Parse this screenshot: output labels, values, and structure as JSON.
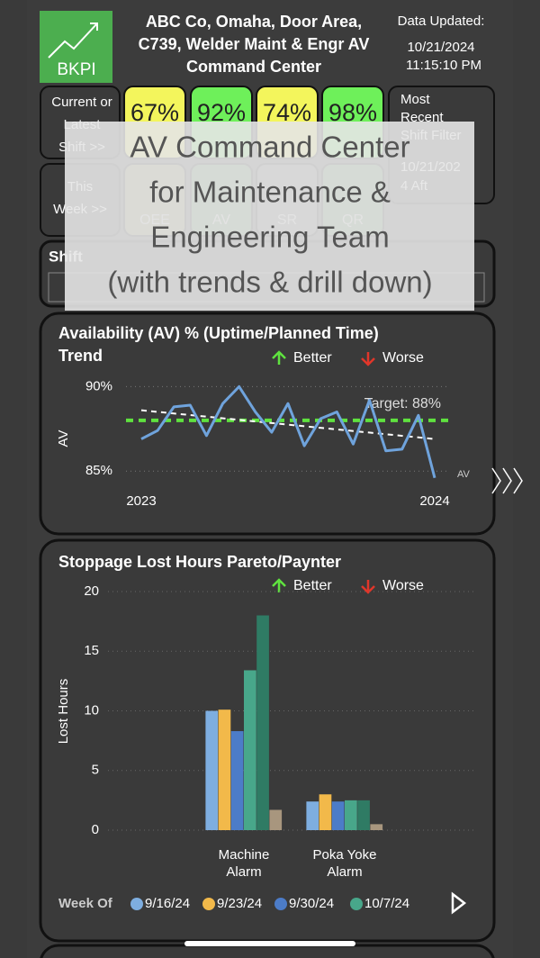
{
  "header": {
    "logo": "BKPI",
    "title_lines": [
      "ABC Co, Omaha, Door Area,",
      "C739, Welder Maint & Engr AV",
      "Command Center"
    ],
    "updated_label": "Data Updated:",
    "updated_date": "10/21/2024",
    "updated_time": "11:15:10 PM"
  },
  "kpi": {
    "current": {
      "label_lines": [
        "Current or",
        "Latest",
        "Shift >>"
      ],
      "values": [
        "67%",
        "92%",
        "74%",
        "98%"
      ],
      "colors": [
        "#f3f55c",
        "#6ef05a",
        "#f3f55c",
        "#6ef05a"
      ]
    },
    "week": {
      "label_lines": [
        "This",
        "Week >>"
      ],
      "metrics": [
        "OEE",
        "AV",
        "SR",
        "QR"
      ],
      "colors": [
        "#f3f55c",
        "#6ef05a",
        "#9a9a9a",
        "#6ef05a"
      ]
    }
  },
  "filter": {
    "label_lines": [
      "Most",
      "Recent",
      "Shift Filter"
    ],
    "value_lines": [
      "10/21/202",
      "4 Aft"
    ]
  },
  "shift": {
    "label": "Shift"
  },
  "overlay": {
    "lines": [
      "AV Command Center",
      "for Maintenance &",
      "Engineering Team",
      "(with trends & drill down)"
    ]
  },
  "chart_data": [
    {
      "type": "line",
      "title_lines": [
        "Availability (AV) % (Uptime/Planned Time)",
        "Trend"
      ],
      "legend_directions": [
        "Better",
        "Worse"
      ],
      "y_label": "AV",
      "categories": [
        "2023",
        null,
        null,
        null,
        null,
        null,
        null,
        null,
        null,
        null,
        null,
        null,
        null,
        null,
        null,
        null,
        null,
        null,
        "2024"
      ],
      "series": [
        {
          "name": "AV",
          "color": "#6fa3dc",
          "values": [
            86.9,
            87.4,
            88.8,
            88.9,
            87.1,
            89.0,
            90.0,
            88.5,
            87.3,
            89.0,
            86.5,
            88.1,
            88.5,
            86.6,
            89.2,
            86.2,
            86.3,
            88.3,
            84.6
          ]
        }
      ],
      "ylim": [
        84,
        90.5
      ],
      "yticks": [
        {
          "value": 85,
          "label": "85%"
        },
        {
          "value": 90,
          "label": "90%"
        }
      ],
      "target": {
        "value": 88,
        "label": "Target: 88%",
        "color": "#5fe23f"
      },
      "trend": [
        88.6,
        86.9
      ],
      "trend_color": "#ffffff",
      "grid": true
    },
    {
      "type": "bar",
      "title": "Stoppage Lost Hours Pareto/Paynter",
      "legend_directions": [
        "Better",
        "Worse"
      ],
      "y_label": "Lost Hours",
      "legend_title": "Week Of",
      "categories": [
        "Machine Alarm",
        "Poka Yoke Alarm"
      ],
      "series": [
        {
          "name": "9/16/24",
          "color": "#7eaee0",
          "values": [
            10.0,
            2.4
          ]
        },
        {
          "name": "9/23/24",
          "color": "#f2b94a",
          "values": [
            10.1,
            3.0
          ]
        },
        {
          "name": "9/30/24",
          "color": "#4c7cc8",
          "values": [
            8.3,
            2.4
          ]
        },
        {
          "name": "10/7/24",
          "color": "#48a78a",
          "values": [
            13.4,
            2.5
          ]
        },
        {
          "color": "#2f7b64",
          "values": [
            18.0,
            2.5
          ]
        },
        {
          "color": "#a8967e",
          "values": [
            1.7,
            0.5
          ]
        }
      ],
      "ylim": [
        0,
        20
      ],
      "yticks": [
        0,
        5,
        10,
        15,
        20
      ]
    }
  ]
}
